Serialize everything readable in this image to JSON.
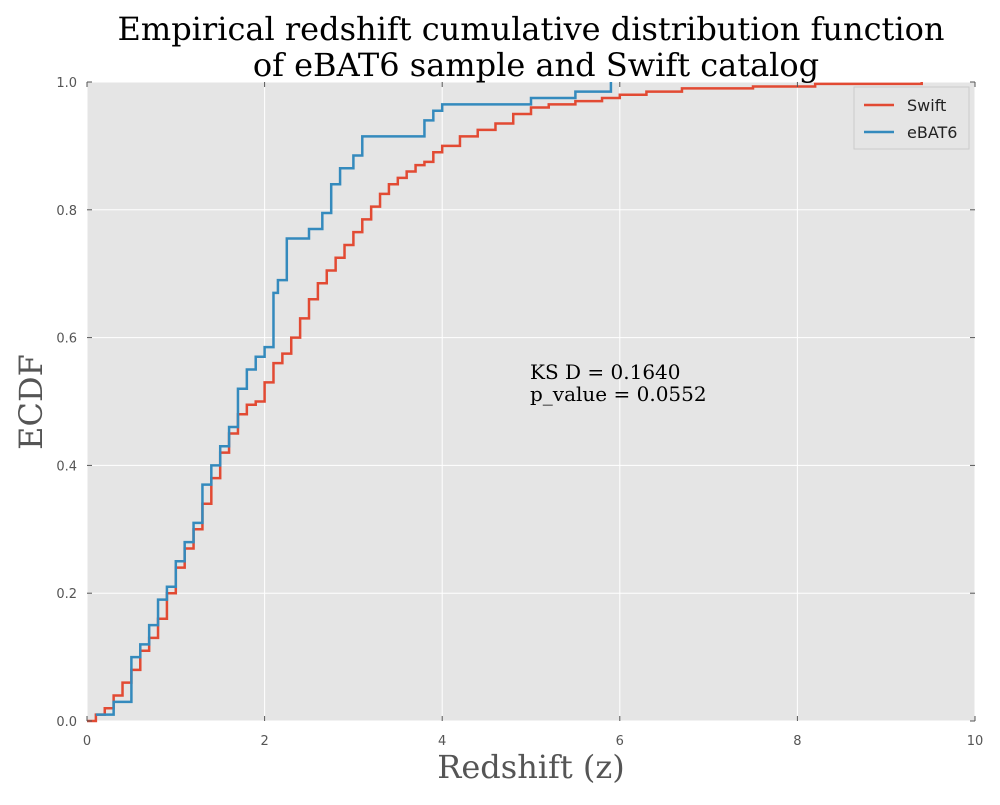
{
  "chart_data": {
    "type": "line",
    "title_line1": "Empirical redshift cumulative distribution function",
    "title_line2": "of eBAT6 sample and Swift catalog",
    "xlabel": "Redshift (z)",
    "ylabel": "ECDF",
    "xlim": [
      0,
      10
    ],
    "ylim": [
      0,
      1.0
    ],
    "xticks": [
      "0",
      "2",
      "4",
      "6",
      "8",
      "10"
    ],
    "yticks": [
      "0.0",
      "0.2",
      "0.4",
      "0.6",
      "0.8",
      "1.0"
    ],
    "grid": true,
    "legend_position": "top-right",
    "background_color": "#e5e5e5",
    "annotation_line1": "KS D = 0.1640",
    "annotation_line2": "p_value = 0.0552",
    "series": [
      {
        "name": "Swift",
        "color": "#e24a33",
        "step": true,
        "x": [
          0.0,
          0.1,
          0.2,
          0.3,
          0.4,
          0.5,
          0.6,
          0.7,
          0.8,
          0.9,
          1.0,
          1.1,
          1.2,
          1.3,
          1.4,
          1.5,
          1.6,
          1.7,
          1.8,
          1.9,
          2.0,
          2.1,
          2.2,
          2.3,
          2.4,
          2.5,
          2.6,
          2.7,
          2.8,
          2.9,
          3.0,
          3.1,
          3.2,
          3.3,
          3.4,
          3.5,
          3.6,
          3.7,
          3.8,
          3.9,
          4.0,
          4.2,
          4.4,
          4.6,
          4.8,
          5.0,
          5.2,
          5.5,
          5.8,
          6.0,
          6.3,
          6.7,
          7.0,
          7.5,
          8.2,
          8.5,
          9.4
        ],
        "y": [
          0.0,
          0.01,
          0.02,
          0.04,
          0.06,
          0.08,
          0.11,
          0.13,
          0.16,
          0.2,
          0.24,
          0.27,
          0.3,
          0.34,
          0.38,
          0.42,
          0.45,
          0.48,
          0.495,
          0.5,
          0.53,
          0.56,
          0.575,
          0.6,
          0.63,
          0.66,
          0.685,
          0.705,
          0.725,
          0.745,
          0.765,
          0.785,
          0.805,
          0.825,
          0.84,
          0.85,
          0.86,
          0.87,
          0.875,
          0.89,
          0.9,
          0.915,
          0.925,
          0.935,
          0.95,
          0.96,
          0.965,
          0.97,
          0.975,
          0.98,
          0.985,
          0.99,
          0.99,
          0.993,
          0.997,
          0.997,
          1.0
        ]
      },
      {
        "name": "eBAT6",
        "color": "#348abd",
        "step": true,
        "x": [
          0.1,
          0.3,
          0.5,
          0.6,
          0.7,
          0.8,
          0.9,
          1.0,
          1.1,
          1.2,
          1.3,
          1.4,
          1.5,
          1.6,
          1.7,
          1.8,
          1.9,
          2.0,
          2.1,
          2.15,
          2.25,
          2.5,
          2.65,
          2.75,
          2.85,
          3.0,
          3.1,
          3.8,
          3.9,
          4.0,
          5.0,
          5.5,
          5.9
        ],
        "y": [
          0.01,
          0.03,
          0.1,
          0.12,
          0.15,
          0.19,
          0.21,
          0.25,
          0.28,
          0.31,
          0.37,
          0.4,
          0.43,
          0.46,
          0.52,
          0.55,
          0.57,
          0.585,
          0.67,
          0.69,
          0.755,
          0.77,
          0.795,
          0.84,
          0.865,
          0.885,
          0.915,
          0.94,
          0.955,
          0.965,
          0.975,
          0.985,
          1.0
        ]
      }
    ]
  }
}
